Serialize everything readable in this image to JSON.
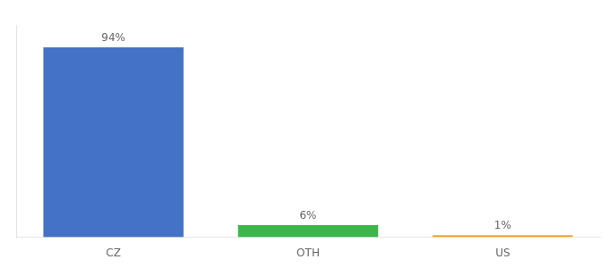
{
  "chart_data": {
    "type": "bar",
    "categories": [
      "CZ",
      "OTH",
      "US"
    ],
    "values": [
      94,
      6,
      1
    ],
    "value_labels": [
      "94%",
      "6%",
      "1%"
    ],
    "colors": [
      "#4472c4",
      "#3cb54a",
      "#f5a623"
    ],
    "ylim": [
      0,
      105
    ],
    "grid": false,
    "data_labels": true,
    "tick_labels": "x"
  }
}
